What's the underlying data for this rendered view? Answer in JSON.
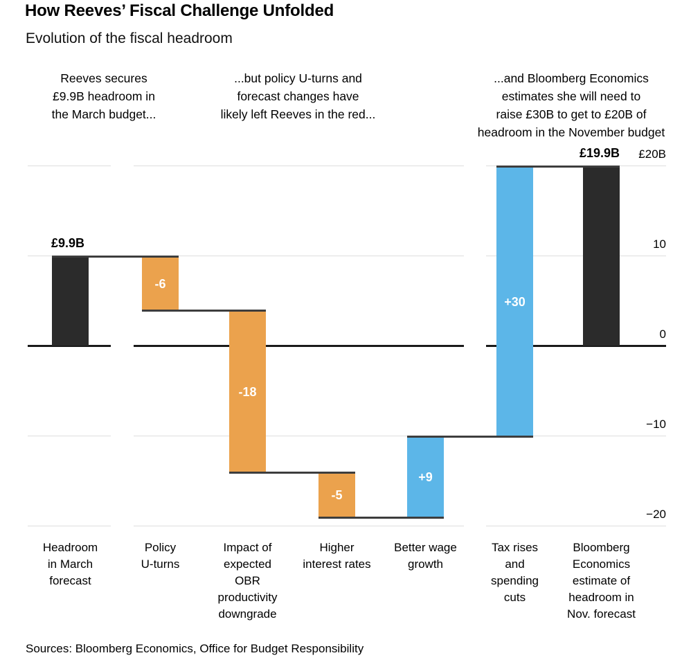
{
  "header": {
    "title": "How Reeves’ Fiscal Challenge Unfolded",
    "subtitle": "Evolution of the fiscal headroom"
  },
  "annotations": [
    {
      "text": "Reeves secures\n£9.9B headroom in\nthe March budget..."
    },
    {
      "text": "...but policy U-turns and\nforecast changes have\nlikely left Reeves in the red..."
    },
    {
      "text": "...and Bloomberg Economics\nestimates she will need to\nraise £30B to get to £20B of\nheadroom in the November budget"
    }
  ],
  "source": "Sources: Bloomberg Economics, Office for Budget Responsibility",
  "chart_data": {
    "type": "waterfall",
    "title": "How Reeves’ Fiscal Challenge Unfolded",
    "subtitle": "Evolution of the fiscal headroom",
    "unit": "£B",
    "categories": [
      "Headroom in March forecast",
      "Policy U-turns",
      "Impact of expected OBR productivity downgrade",
      "Higher interest rates",
      "Better wage growth",
      "Tax rises and spending cuts",
      "Bloomberg Economics estimate of headroom in Nov. forecast"
    ],
    "category_label_lines": [
      "Headroom\nin March\nforecast",
      "Policy\nU-turns",
      "Impact of\nexpected\nOBR\nproductivity\ndowngrade",
      "Higher\ninterest rates",
      "Better wage\ngrowth",
      "Tax rises\nand\nspending\ncuts",
      "Bloomberg\nEconomics\nestimate of\nheadroom in\nNov. forecast"
    ],
    "values": [
      9.9,
      -6,
      -18,
      -5,
      9,
      30,
      19.9
    ],
    "bar_roles": [
      "total",
      "negative",
      "negative",
      "negative",
      "positive",
      "positive",
      "total"
    ],
    "bar_labels": [
      "£9.9B",
      "-6",
      "-18",
      "-5",
      "+9",
      "+30",
      "£19.9B"
    ],
    "label_placement": [
      "above",
      "inside",
      "inside",
      "inside",
      "inside",
      "inside",
      "above"
    ],
    "cumulative_levels": [
      9.9,
      3.9,
      -14.1,
      -19.1,
      -10.1,
      19.9,
      19.9
    ],
    "yticks": [
      {
        "label": "£20B",
        "value": 20
      },
      {
        "label": "10",
        "value": 10
      },
      {
        "label": "0",
        "value": 0
      },
      {
        "label": "−10",
        "value": -10
      },
      {
        "label": "−20",
        "value": -20
      }
    ],
    "ylim": [
      -21,
      20
    ],
    "grid": true,
    "legend": false,
    "colors": {
      "total": "#2B2B2B",
      "negative": "#EBA24D",
      "positive": "#5CB6E8",
      "grid": "#DEDEDE",
      "zero_line": "#1A1A1A",
      "connector": "#3D3D3D",
      "label_inside": "#FFFFFF"
    }
  }
}
